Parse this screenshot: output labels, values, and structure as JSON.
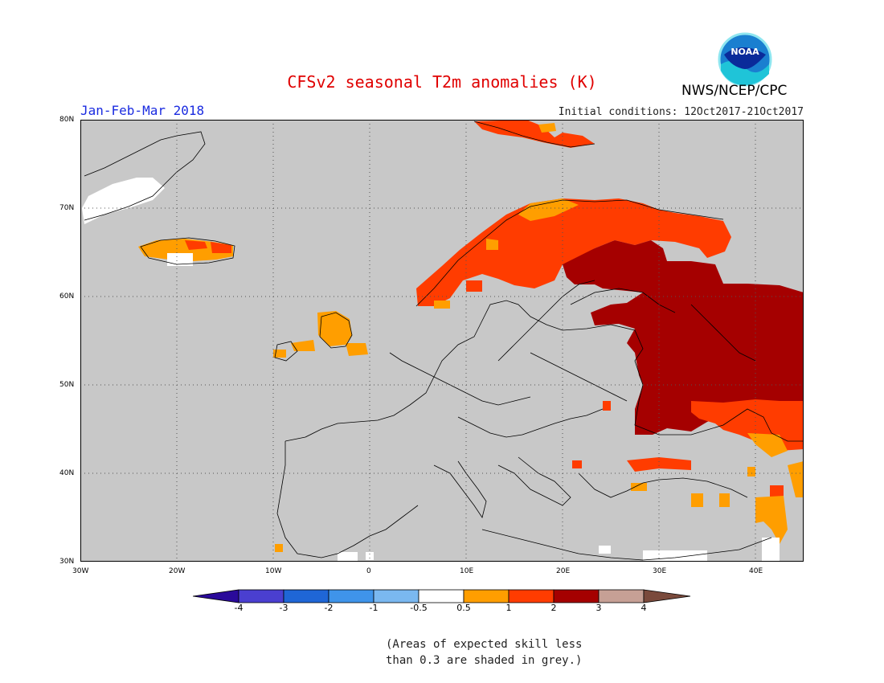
{
  "title": "CFSv2 seasonal T2m anomalies (K)",
  "period": "Jan-Feb-Mar 2018",
  "initial_conditions": "Initial conditions: 12Oct2017-21Oct2017",
  "organization": "NWS/NCEP/CPC",
  "logo_text": "NOAA",
  "map": {
    "lon_range": [
      -30,
      45
    ],
    "lat_range": [
      30,
      80
    ],
    "lat_ticks": [
      "80N",
      "70N",
      "60N",
      "50N",
      "40N",
      "30N"
    ],
    "lon_ticks": [
      "30W",
      "20W",
      "10W",
      "0",
      "10E",
      "20E",
      "30E",
      "40E"
    ],
    "background_color": "#c8c8c8",
    "gridlines": "dotted"
  },
  "colorbar": {
    "labels": [
      "-4",
      "-3",
      "-2",
      "-1",
      "-0.5",
      "0.5",
      "1",
      "2",
      "3",
      "4"
    ],
    "colors": [
      "#2a0a9a",
      "#4a3fd0",
      "#1f66d6",
      "#3f94ea",
      "#7ab8f0",
      "#ffffff",
      "#ff9e00",
      "#ff3c00",
      "#a50000",
      "#c6a095",
      "#7a4a3c"
    ]
  },
  "note_lines": [
    "(Areas of expected skill less",
    "than 0.3 are shaded in grey.)"
  ]
}
